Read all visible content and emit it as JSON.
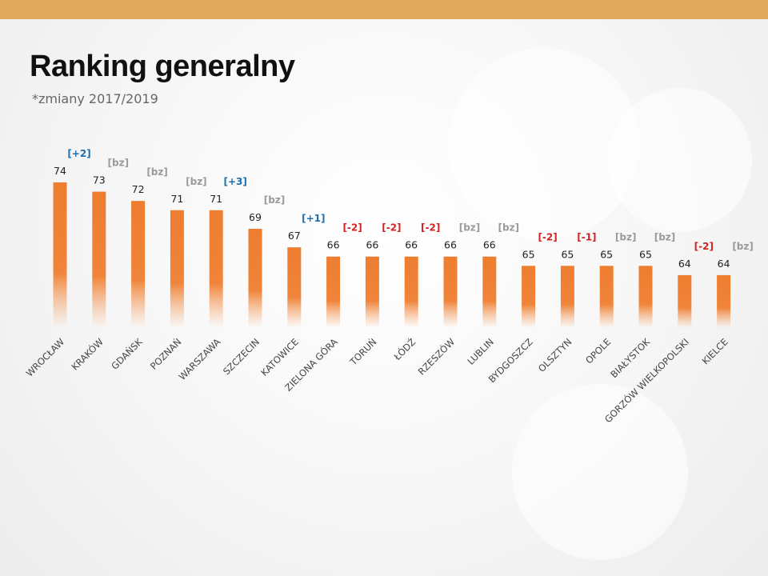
{
  "title": "Ranking generalny",
  "subtitle": "*zmiany 2017/2019",
  "colors": {
    "header": "#e0a85a",
    "bar": "#ee7d2f",
    "up": "#1c6fb0",
    "down": "#d42121",
    "neutral": "#9a9a9a"
  },
  "chart_data": {
    "type": "bar",
    "title": "Ranking generalny",
    "xlabel": "",
    "ylabel": "",
    "categories": [
      "WROCŁAW",
      "KRAKÓW",
      "GDAŃSK",
      "POZNAŃ",
      "WARSZAWA",
      "SZCZECIN",
      "KATOWICE",
      "ZIELONA GÓRA",
      "TORUŃ",
      "ŁÓDŹ",
      "RZESZÓW",
      "LUBLIN",
      "BYDGOSZCZ",
      "OLSZTYN",
      "OPOLE",
      "BIAŁYSTOK",
      "GORZÓW WIELKOPOLSKI",
      "KIELCE"
    ],
    "values": [
      74,
      73,
      72,
      71,
      71,
      69,
      67,
      66,
      66,
      66,
      66,
      66,
      65,
      65,
      65,
      65,
      64,
      64
    ],
    "changes": [
      "[+2]",
      "[bz]",
      "[bz]",
      "[bz]",
      "[+3]",
      "[bz]",
      "[+1]",
      "[-2]",
      "[-2]",
      "[-2]",
      "[bz]",
      "[bz]",
      "[-2]",
      "[-1]",
      "[bz]",
      "[bz]",
      "[-2]",
      "[bz]"
    ],
    "ylim": [
      58.3,
      74
    ]
  }
}
